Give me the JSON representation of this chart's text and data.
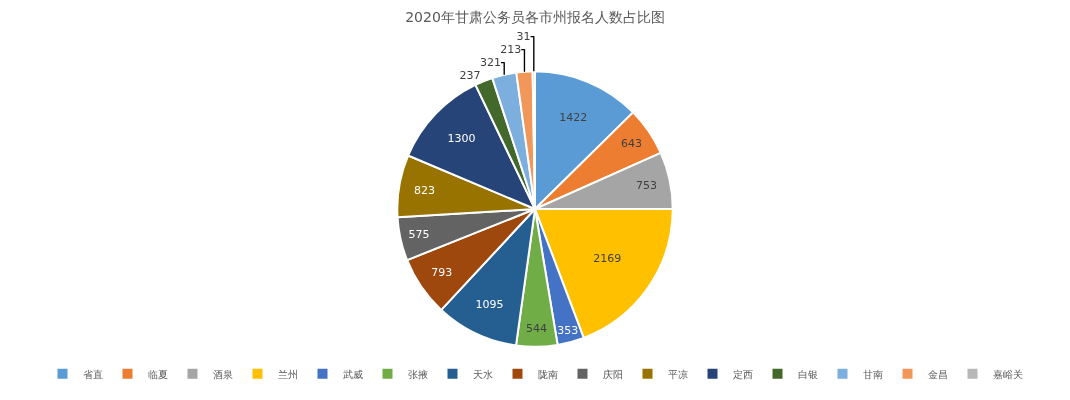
{
  "chart_data": {
    "type": "pie",
    "title": "2020年甘肃公务员各市州报名人数占比图",
    "categories": [
      "省直",
      "临夏",
      "酒泉",
      "兰州",
      "武威",
      "张掖",
      "天水",
      "陇南",
      "庆阳",
      "平凉",
      "定西",
      "白银",
      "甘南",
      "金昌",
      "嘉峪关"
    ],
    "values": [
      1422,
      643,
      753,
      2169,
      353,
      544,
      1095,
      793,
      575,
      823,
      1300,
      237,
      321,
      213,
      31
    ],
    "colors": [
      "#5b9bd5",
      "#ed7d31",
      "#a5a5a5",
      "#ffc000",
      "#4472c4",
      "#70ad47",
      "#255e91",
      "#9e480e",
      "#636363",
      "#997300",
      "#264478",
      "#43682b",
      "#7cafdd",
      "#f1975a",
      "#b7b7b7"
    ],
    "data_labels": true,
    "legend": "bottom"
  }
}
